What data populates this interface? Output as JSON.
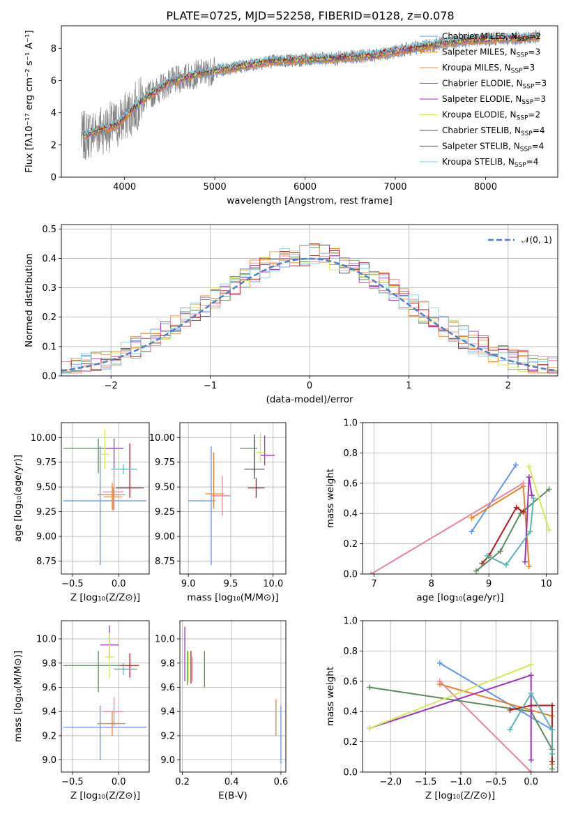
{
  "title": "PLATE=0725, MJD=52258, FIBERID=0128, z=0.078",
  "colors": {
    "Chabrier MILES": "#6495ed",
    "Salpeter MILES": "#e8822a",
    "Kroupa MILES": "#e7904f",
    "Chabrier ELODIE": "#5b8a5b",
    "Salpeter ELODIE": "#9b30c0",
    "Kroupa ELODIE": "#d4e85a",
    "Chabrier STELIB": "#555555",
    "Salpeter STELIB": "#b01a1a",
    "Kroupa STELIB": "#7fd3e0",
    "data": "#808080",
    "extra1": "#e7849c",
    "extra2": "#5bb3b0"
  },
  "chart_data": [
    {
      "panel": "spectrum",
      "type": "line",
      "xlabel": "wavelength [Angstrom, rest frame]",
      "ylabel": "Flux [fλ10⁻¹⁷ erg cm⁻² s⁻¹ A⁻¹]",
      "xlim": [
        3300,
        8800
      ],
      "ylim": [
        0,
        9.4
      ],
      "xticks": [
        "4000",
        "5000",
        "6000",
        "7000",
        "8000"
      ],
      "yticks": [
        "0",
        "2",
        "4",
        "6",
        "8"
      ],
      "legend": [
        {
          "name": "Chabrier MILES, N",
          "sub": "SSP",
          "suffix": "=2"
        },
        {
          "name": "Salpeter MILES, N",
          "sub": "SSP",
          "suffix": "=3"
        },
        {
          "name": "Kroupa MILES, N",
          "sub": "SSP",
          "suffix": "=3"
        },
        {
          "name": "Chabrier ELODIE, N",
          "sub": "SSP",
          "suffix": "=3"
        },
        {
          "name": "Salpeter ELODIE, N",
          "sub": "SSP",
          "suffix": "=3"
        },
        {
          "name": "Kroupa ELODIE, N",
          "sub": "SSP",
          "suffix": "=2"
        },
        {
          "name": "Chabrier STELIB, N",
          "sub": "SSP",
          "suffix": "=4"
        },
        {
          "name": "Salpeter STELIB, N",
          "sub": "SSP",
          "suffix": "=4"
        },
        {
          "name": "Kroupa STELIB, N",
          "sub": "SSP",
          "suffix": "=4"
        }
      ],
      "legend_position": "upper right",
      "continuum": {
        "x": [
          3530,
          3700,
          3900,
          4000,
          4200,
          4500,
          4800,
          5200,
          5600,
          6000,
          6400,
          6800,
          7200,
          7500,
          7800,
          8200,
          8600
        ],
        "y": [
          2.5,
          2.9,
          3.2,
          3.7,
          4.8,
          5.9,
          6.4,
          6.8,
          7.2,
          7.3,
          7.4,
          7.6,
          8.0,
          8.3,
          8.5,
          8.6,
          8.7
        ]
      }
    },
    {
      "panel": "residuals",
      "type": "line",
      "xlabel": "(data-model)/error",
      "ylabel": "Normed distribution",
      "xlim": [
        -2.5,
        2.5
      ],
      "ylim": [
        0,
        0.515
      ],
      "xticks": [
        "−2",
        "−1",
        "0",
        "1",
        "2"
      ],
      "yticks": [
        "0.0",
        "0.1",
        "0.2",
        "0.3",
        "0.4",
        "0.5"
      ],
      "legend": [
        "𝒩(0, 1)"
      ],
      "legend_position": "upper right",
      "grid": true
    },
    {
      "panel": "age-vs-Z",
      "type": "scatter",
      "xlabel": "Z [log₁₀(Z/Z⊙)]",
      "ylabel": "age  [log₁₀(age/yr)]",
      "xlim": [
        -0.62,
        0.33
      ],
      "ylim": [
        8.62,
        10.15
      ],
      "xticks": [
        "−0.5",
        "0.0"
      ],
      "yticks": [
        "8.75",
        "9.00",
        "9.25",
        "9.50",
        "9.75",
        "10.00"
      ],
      "grid": true,
      "points": [
        {
          "color": "Chabrier MILES",
          "x": -0.2,
          "y": 9.36,
          "xerr": [
            0.4,
            0.5
          ],
          "yerr": [
            0.65,
            0.55
          ]
        },
        {
          "color": "Salpeter MILES",
          "x": -0.07,
          "y": 9.42,
          "xerr": [
            0.16,
            0.14
          ],
          "yerr": [
            0.15,
            0.12
          ]
        },
        {
          "color": "extra1",
          "x": -0.05,
          "y": 9.45,
          "xerr": [
            0.12,
            0.1
          ],
          "yerr": [
            0.18,
            0.25
          ]
        },
        {
          "color": "Kroupa MILES",
          "x": -0.06,
          "y": 9.4,
          "xerr": [
            0.1,
            0.1
          ],
          "yerr": [
            0.14,
            0.1
          ]
        },
        {
          "color": "Chabrier ELODIE",
          "x": -0.22,
          "y": 9.89,
          "xerr": [
            0.38,
            0.27
          ],
          "yerr": [
            0.25,
            0.1
          ]
        },
        {
          "color": "Salpeter ELODIE",
          "x": -0.05,
          "y": 9.89,
          "xerr": [
            0.1,
            0.1
          ],
          "yerr": [
            0.2,
            0.1
          ]
        },
        {
          "color": "Kroupa ELODIE",
          "x": -0.15,
          "y": 9.83,
          "xerr": [
            0.05,
            0.05
          ],
          "yerr": [
            0.15,
            0.25
          ]
        },
        {
          "color": "Salpeter STELIB",
          "x": 0.12,
          "y": 9.49,
          "xerr": [
            0.15,
            0.15
          ],
          "yerr": [
            0.1,
            0.45
          ]
        },
        {
          "color": "extra2",
          "x": 0.05,
          "y": 9.68,
          "xerr": [
            0.13,
            0.15
          ],
          "yerr": [
            0.05,
            0.05
          ]
        }
      ]
    },
    {
      "panel": "age-vs-mass",
      "type": "scatter",
      "xlabel": "mass [log₁₀(M/M⊙)]",
      "xlim": [
        8.9,
        10.15
      ],
      "ylim": [
        8.62,
        10.15
      ],
      "xticks": [
        "9.0",
        "9.5",
        "10.0"
      ],
      "yticks": [
        "8.75",
        "9.00",
        "9.25",
        "9.50",
        "9.75",
        "10.00"
      ],
      "grid": true,
      "points": [
        {
          "color": "Chabrier MILES",
          "x": 9.27,
          "y": 9.36,
          "xerr": [
            0.27,
            0.05
          ],
          "yerr": [
            0.65,
            0.55
          ]
        },
        {
          "color": "Salpeter MILES",
          "x": 9.3,
          "y": 9.43,
          "xerr": [
            0.1,
            0.12
          ],
          "yerr": [
            0.15,
            0.42
          ]
        },
        {
          "color": "extra1",
          "x": 9.4,
          "y": 9.41,
          "xerr": [
            0.12,
            0.1
          ],
          "yerr": [
            0.2,
            0.2
          ]
        },
        {
          "color": "Chabrier ELODIE",
          "x": 9.78,
          "y": 9.89,
          "xerr": [
            0.17,
            0.03
          ],
          "yerr": [
            0.25,
            0.1
          ]
        },
        {
          "color": "Salpeter ELODIE",
          "x": 9.9,
          "y": 9.82,
          "xerr": [
            0.05,
            0.12
          ],
          "yerr": [
            0.1,
            0.2
          ]
        },
        {
          "color": "Kroupa ELODIE",
          "x": 9.85,
          "y": 9.85,
          "xerr": [
            0.05,
            0.05
          ],
          "yerr": [
            0.1,
            0.2
          ]
        },
        {
          "color": "Chabrier STELIB",
          "x": 9.78,
          "y": 9.68,
          "xerr": [
            0.12,
            0.12
          ],
          "yerr": [
            0.1,
            0.35
          ]
        },
        {
          "color": "Salpeter STELIB",
          "x": 9.8,
          "y": 9.49,
          "xerr": [
            0.1,
            0.1
          ],
          "yerr": [
            0.1,
            0.1
          ]
        }
      ]
    },
    {
      "panel": "mass-weight-vs-age",
      "type": "line",
      "xlabel": "age  [log₁₀(age/yr)]",
      "ylabel": "mass weight",
      "xlim": [
        6.8,
        10.2
      ],
      "ylim": [
        0,
        1
      ],
      "xticks": [
        "7",
        "8",
        "9",
        "10"
      ],
      "yticks": [
        "0.0",
        "0.2",
        "0.4",
        "0.6",
        "0.8",
        "1.0"
      ],
      "grid": true,
      "series": [
        {
          "color": "Chabrier MILES",
          "x": [
            8.7,
            9.47
          ],
          "y": [
            0.28,
            0.72
          ]
        },
        {
          "color": "Salpeter MILES",
          "x": [
            8.7,
            9.6,
            9.7
          ],
          "y": [
            0.37,
            0.58,
            0.05
          ]
        },
        {
          "color": "extra1",
          "x": [
            6.95,
            9.6
          ],
          "y": [
            0.0,
            0.6
          ]
        },
        {
          "color": "Chabrier ELODIE",
          "x": [
            8.78,
            9.2,
            9.55,
            10.05
          ],
          "y": [
            0.02,
            0.15,
            0.4,
            0.56
          ]
        },
        {
          "color": "Salpeter ELODIE",
          "x": [
            9.63,
            9.7,
            9.75
          ],
          "y": [
            0.08,
            0.64,
            0.52
          ]
        },
        {
          "color": "Kroupa ELODIE",
          "x": [
            9.7,
            10.05
          ],
          "y": [
            0.71,
            0.29
          ]
        },
        {
          "color": "Salpeter STELIB",
          "x": [
            8.88,
            9.0,
            9.48,
            9.6
          ],
          "y": [
            0.07,
            0.12,
            0.44,
            0.41
          ]
        },
        {
          "color": "extra2",
          "x": [
            8.97,
            9.3,
            9.72,
            9.78
          ],
          "y": [
            0.12,
            0.06,
            0.28,
            0.5
          ]
        }
      ]
    },
    {
      "panel": "mass-vs-Z",
      "type": "scatter",
      "xlabel": "Z [log₁₀(Z/Z⊙)]",
      "ylabel": "mass [log₁₀(M/M⊙)]",
      "xlim": [
        -0.62,
        0.33
      ],
      "ylim": [
        8.9,
        10.15
      ],
      "xticks": [
        "−0.5",
        "0.0"
      ],
      "yticks": [
        "9.0",
        "9.2",
        "9.4",
        "9.6",
        "9.8",
        "10.0"
      ],
      "grid": true,
      "points": [
        {
          "color": "Chabrier MILES",
          "x": -0.2,
          "y": 9.27,
          "xerr": [
            0.4,
            0.5
          ],
          "yerr": [
            0.27,
            0.18
          ]
        },
        {
          "color": "Salpeter MILES",
          "x": -0.07,
          "y": 9.3,
          "xerr": [
            0.16,
            0.14
          ],
          "yerr": [
            0.1,
            0.1
          ]
        },
        {
          "color": "extra1",
          "x": -0.05,
          "y": 9.4,
          "xerr": [
            0.12,
            0.1
          ],
          "yerr": [
            0.12,
            0.12
          ]
        },
        {
          "color": "Chabrier ELODIE",
          "x": -0.22,
          "y": 9.78,
          "xerr": [
            0.38,
            0.27
          ],
          "yerr": [
            0.22,
            0.12
          ]
        },
        {
          "color": "Salpeter ELODIE",
          "x": -0.1,
          "y": 9.95,
          "xerr": [
            0.1,
            0.1
          ],
          "yerr": [
            0.1,
            0.16
          ]
        },
        {
          "color": "Kroupa ELODIE",
          "x": -0.1,
          "y": 9.85,
          "xerr": [
            0.05,
            0.05
          ],
          "yerr": [
            0.17,
            0.2
          ]
        },
        {
          "color": "Salpeter STELIB",
          "x": 0.12,
          "y": 9.78,
          "xerr": [
            0.1,
            0.1
          ],
          "yerr": [
            0.1,
            0.1
          ]
        },
        {
          "color": "extra2",
          "x": 0.05,
          "y": 9.75,
          "xerr": [
            0.1,
            0.15
          ],
          "yerr": [
            0.05,
            0.05
          ]
        }
      ]
    },
    {
      "panel": "mass-vs-EBV",
      "type": "scatter",
      "xlabel": "E(B-V)",
      "xlim": [
        0.19,
        0.62
      ],
      "ylim": [
        8.9,
        10.15
      ],
      "xticks": [
        "0.2",
        "0.4",
        "0.6"
      ],
      "yticks": [
        "9.0",
        "9.2",
        "9.4",
        "9.6",
        "9.8",
        "10.0"
      ],
      "grid": true,
      "points": [
        {
          "color": "Chabrier MILES",
          "x": 0.6,
          "y": 9.27,
          "xerr": [
            0,
            0
          ],
          "yerr": [
            0.3,
            0.18
          ]
        },
        {
          "color": "Salpeter MILES",
          "x": 0.58,
          "y": 9.3,
          "xerr": [
            0,
            0
          ],
          "yerr": [
            0.1,
            0.2
          ]
        },
        {
          "color": "Salpeter ELODIE",
          "x": 0.21,
          "y": 9.85,
          "xerr": [
            0,
            0
          ],
          "yerr": [
            0.2,
            0.25
          ]
        },
        {
          "color": "Chabrier ELODIE",
          "x": 0.22,
          "y": 9.8,
          "xerr": [
            0,
            0
          ],
          "yerr": [
            0.18,
            0.1
          ]
        },
        {
          "color": "Kroupa ELODIE",
          "x": 0.225,
          "y": 9.8,
          "xerr": [
            0,
            0
          ],
          "yerr": [
            0.15,
            0.1
          ]
        },
        {
          "color": "Salpeter STELIB",
          "x": 0.235,
          "y": 9.78,
          "xerr": [
            0,
            0
          ],
          "yerr": [
            0.15,
            0.12
          ]
        },
        {
          "color": "extra1",
          "x": 0.24,
          "y": 9.75,
          "xerr": [
            0,
            0
          ],
          "yerr": [
            0.1,
            0.1
          ]
        },
        {
          "color": "Chabrier ELODIE",
          "x": 0.29,
          "y": 9.75,
          "xerr": [
            0,
            0
          ],
          "yerr": [
            0.15,
            0.15
          ]
        }
      ]
    },
    {
      "panel": "mass-weight-vs-Z",
      "type": "line",
      "xlabel": "Z [log₁₀(Z/Z⊙)]",
      "ylabel": "mass weight",
      "xlim": [
        -2.4,
        0.38
      ],
      "ylim": [
        0,
        1
      ],
      "xticks": [
        "−2.0",
        "−1.5",
        "−1.0",
        "−0.5",
        "0.0"
      ],
      "yticks": [
        "0.0",
        "0.2",
        "0.4",
        "0.6",
        "0.8",
        "1.0"
      ],
      "grid": true,
      "series": [
        {
          "color": "Chabrier MILES",
          "x": [
            -1.3,
            0.3
          ],
          "y": [
            0.72,
            0.28
          ]
        },
        {
          "color": "Salpeter MILES",
          "x": [
            -1.3,
            0.3,
            0.3
          ],
          "y": [
            0.58,
            0.37,
            0.05
          ]
        },
        {
          "color": "extra1",
          "x": [
            -1.3,
            0.0
          ],
          "y": [
            0.6,
            0.0
          ]
        },
        {
          "color": "Chabrier ELODIE",
          "x": [
            -2.3,
            0.0,
            0.3,
            0.3
          ],
          "y": [
            0.56,
            0.4,
            0.15,
            0.02
          ]
        },
        {
          "color": "Salpeter ELODIE",
          "x": [
            -2.3,
            0.0,
            0.0
          ],
          "y": [
            0.29,
            0.64,
            0.08
          ]
        },
        {
          "color": "Kroupa ELODIE",
          "x": [
            -2.3,
            0.0
          ],
          "y": [
            0.29,
            0.71
          ]
        },
        {
          "color": "Salpeter STELIB",
          "x": [
            -0.3,
            0.0,
            0.3,
            0.3
          ],
          "y": [
            0.41,
            0.44,
            0.44,
            0.07
          ]
        },
        {
          "color": "extra2",
          "x": [
            -0.3,
            0.0,
            0.3,
            0.3
          ],
          "y": [
            0.28,
            0.52,
            0.28,
            0.12
          ]
        }
      ]
    }
  ]
}
